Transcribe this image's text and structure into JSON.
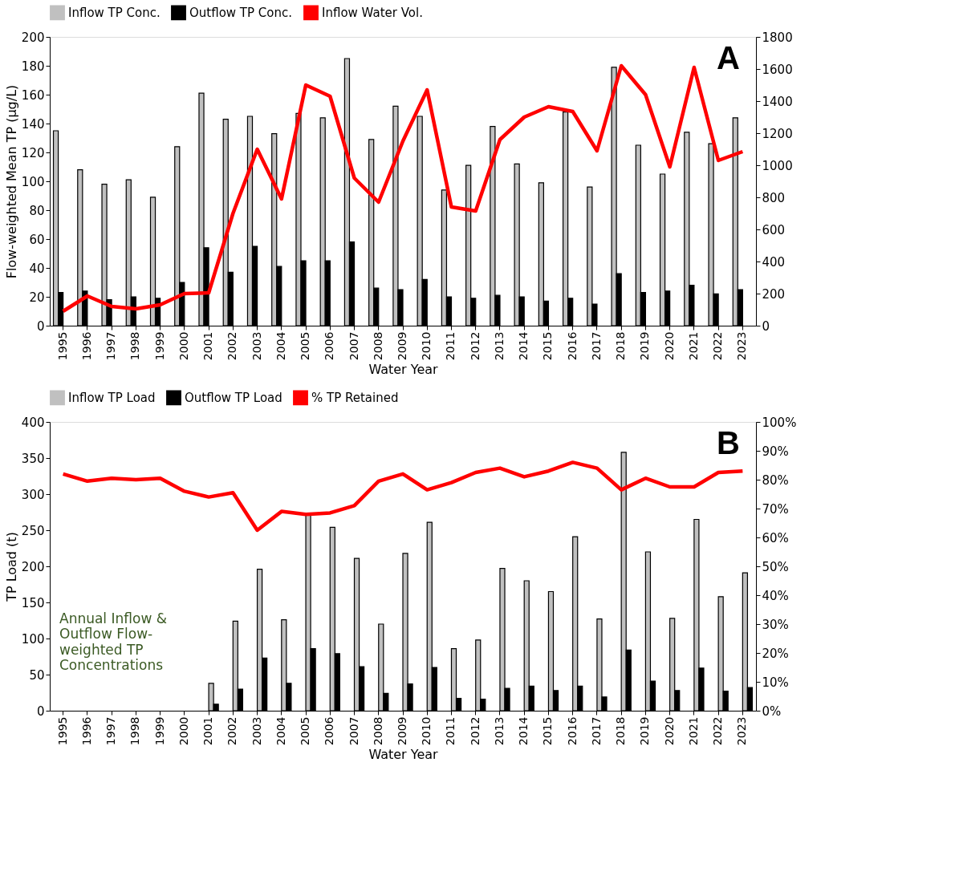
{
  "chart_data": [
    {
      "type": "bar",
      "categories": [
        "1995",
        "1996",
        "1997",
        "1998",
        "1999",
        "2000",
        "2001",
        "2002",
        "2003",
        "2004",
        "2005",
        "2006",
        "2007",
        "2008",
        "2009",
        "2010",
        "2011",
        "2012",
        "2013",
        "2014",
        "2015",
        "2016",
        "2017",
        "2018",
        "2019",
        "2020",
        "2021",
        "2022",
        "2023"
      ],
      "xlabel": "Water Year",
      "ylabel": "Flow-weighted Mean TP (µg/L)",
      "ylim": [
        0,
        200
      ],
      "yticks": [
        0,
        20,
        40,
        60,
        80,
        100,
        120,
        140,
        160,
        180,
        200
      ],
      "y2lim": [
        0,
        1800
      ],
      "y2ticks": [
        0,
        200,
        400,
        600,
        800,
        1000,
        1200,
        1400,
        1600,
        1800
      ],
      "legend": "top",
      "grid": false,
      "annotations": [
        "A"
      ],
      "series": [
        {
          "name": "Inflow TP Conc.",
          "color": "#c0c0c0",
          "values": [
            135,
            108,
            98,
            101,
            89,
            124,
            161,
            143,
            145,
            133,
            147,
            144,
            185,
            129,
            152,
            145,
            94,
            111,
            138,
            112,
            99,
            148,
            96,
            179,
            125,
            105,
            134,
            126,
            144
          ]
        },
        {
          "name": "Outflow TP Conc.",
          "color": "#000000",
          "values": [
            23,
            24,
            18,
            20,
            19,
            30,
            54,
            37,
            55,
            41,
            45,
            45,
            58,
            26,
            25,
            32,
            20,
            19,
            21,
            20,
            17,
            19,
            15,
            36,
            23,
            24,
            28,
            22,
            25
          ]
        },
        {
          "name": "Inflow Water Vol.",
          "color": "#ff0000",
          "type": "line",
          "axis": "y2",
          "values": [
            90,
            185,
            120,
            105,
            130,
            200,
            205,
            700,
            1100,
            790,
            1500,
            1430,
            920,
            770,
            1150,
            1470,
            740,
            715,
            1160,
            1300,
            1365,
            1335,
            1090,
            1620,
            1440,
            990,
            1610,
            1030,
            1085
          ]
        }
      ]
    },
    {
      "type": "bar",
      "categories": [
        "1995",
        "1996",
        "1997",
        "1998",
        "1999",
        "2000",
        "2001",
        "2002",
        "2003",
        "2004",
        "2005",
        "2006",
        "2007",
        "2008",
        "2009",
        "2010",
        "2011",
        "2012",
        "2013",
        "2014",
        "2015",
        "2016",
        "2017",
        "2018",
        "2019",
        "2020",
        "2021",
        "2022",
        "2023"
      ],
      "xlabel": "Water Year",
      "ylabel": "TP Load (t)",
      "ylim": [
        0,
        400
      ],
      "yticks": [
        0,
        50,
        100,
        150,
        200,
        250,
        300,
        350,
        400
      ],
      "y2lim": [
        0,
        100
      ],
      "y2ticks": [
        {
          "value": 0,
          "label": "0%"
        },
        {
          "value": 10,
          "label": "10%"
        },
        {
          "value": 20,
          "label": "20%"
        },
        {
          "value": 30,
          "label": "30%"
        },
        {
          "value": 40,
          "label": "40%"
        },
        {
          "value": 50,
          "label": "50%"
        },
        {
          "value": 60,
          "label": "60%"
        },
        {
          "value": 70,
          "label": "70%"
        },
        {
          "value": 80,
          "label": "80%"
        },
        {
          "value": 90,
          "label": "90%"
        },
        {
          "value": 100,
          "label": "100%"
        }
      ],
      "legend": "top",
      "grid": false,
      "annotations": [
        "B",
        "Annual Inflow & Outflow Flow-weighted TP Concentrations"
      ],
      "series": [
        {
          "name": "Inflow TP Load",
          "color": "#c0c0c0",
          "values": [
            null,
            null,
            null,
            null,
            null,
            null,
            38,
            124,
            196,
            126,
            273,
            254,
            211,
            120,
            218,
            261,
            86,
            98,
            197,
            180,
            165,
            241,
            127,
            358,
            220,
            128,
            265,
            158,
            191
          ]
        },
        {
          "name": "Outflow TP Load",
          "color": "#000000",
          "values": [
            null,
            null,
            null,
            null,
            null,
            null,
            9,
            30,
            73,
            38,
            86,
            79,
            61,
            24,
            37,
            60,
            17,
            16,
            31,
            34,
            28,
            34,
            19,
            84,
            41,
            28,
            59,
            27,
            32
          ]
        },
        {
          "name": "% TP Retained",
          "color": "#ff0000",
          "type": "line",
          "axis": "y2",
          "values": [
            82,
            79.5,
            80.5,
            80,
            80.5,
            76,
            74,
            75.5,
            62.5,
            69,
            68,
            68.5,
            71,
            79.5,
            82,
            76.5,
            79,
            82.5,
            84,
            81,
            83,
            86,
            84,
            76.5,
            80.5,
            77.5,
            77.5,
            82.5,
            83
          ]
        }
      ]
    }
  ]
}
